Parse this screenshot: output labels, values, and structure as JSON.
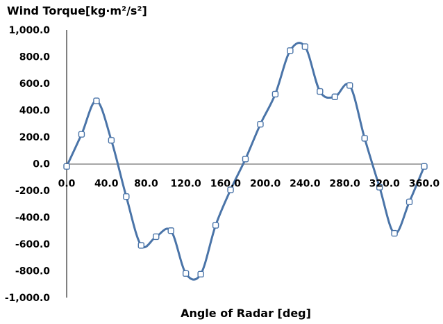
{
  "chart_data": {
    "type": "line",
    "title": "Wind Torque[kg·m²/s²]",
    "xlabel": "Angle of Radar [deg]",
    "ylabel": "",
    "xlim": [
      0,
      360
    ],
    "ylim": [
      -1000,
      1000
    ],
    "x_ticks": [
      0,
      40,
      80,
      120,
      160,
      200,
      240,
      280,
      320,
      360
    ],
    "x_tick_labels": [
      "0.0",
      "40.0",
      "80.0",
      "120.0",
      "160.0",
      "200.0",
      "240.0",
      "280.0",
      "320.0",
      "360.0"
    ],
    "y_ticks": [
      1000,
      800,
      600,
      400,
      200,
      0,
      -200,
      -400,
      -600,
      -800,
      -1000
    ],
    "y_tick_labels": [
      "1,000.0",
      "800.0",
      "600.0",
      "400.0",
      "200.0",
      "0.0",
      "-200.0",
      "-400.0",
      "-600.0",
      "-800.0",
      "-1,000.0"
    ],
    "grid": false,
    "legend": "none",
    "series_color": "#4a74a8",
    "series": [
      {
        "x": [
          0,
          15,
          30,
          45,
          60,
          75,
          90,
          105,
          120,
          135,
          150,
          165,
          180,
          195,
          210,
          225,
          240,
          255,
          270,
          285,
          300,
          315,
          330,
          345,
          360
        ],
        "y": [
          -20,
          220,
          470,
          175,
          -245,
          -610,
          -545,
          -500,
          -820,
          -825,
          -460,
          -195,
          35,
          295,
          520,
          845,
          875,
          540,
          500,
          585,
          190,
          -175,
          -520,
          -285,
          -20
        ]
      }
    ]
  }
}
